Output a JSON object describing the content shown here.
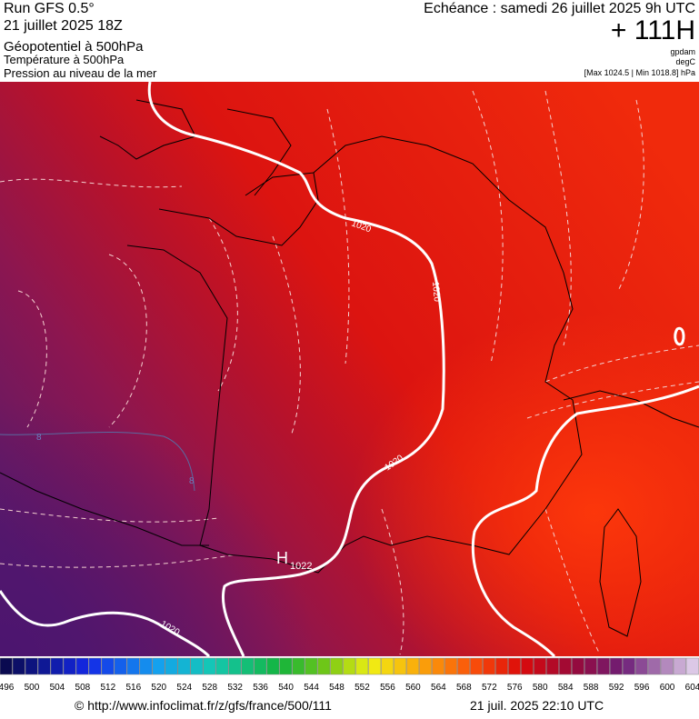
{
  "header": {
    "run": "Run GFS 0.5°",
    "date": "21 juillet 2025 18Z",
    "fields": [
      "Géopotentiel à 500hPa",
      "Température à 500hPa",
      "Pression au niveau de la mer"
    ],
    "forecast": "Echéance : samedi 26 juillet 2025 9h UTC",
    "lead": "+ 111H",
    "units": [
      "gpdam",
      "degC",
      "[Max 1024.5 | Min 1018.8] hPa"
    ]
  },
  "map": {
    "isobar_labels": [
      "1020",
      "1020",
      "1020",
      "1020"
    ],
    "high": {
      "symbol": "H",
      "value": "1022"
    },
    "temp_labels": [
      "8",
      "8"
    ]
  },
  "scale": {
    "labels": [
      496,
      500,
      504,
      508,
      512,
      516,
      520,
      524,
      528,
      532,
      536,
      540,
      544,
      548,
      552,
      556,
      560,
      564,
      568,
      572,
      576,
      580,
      584,
      588,
      592,
      596,
      600,
      604
    ]
  },
  "footer": {
    "url": "© http://www.infoclimat.fr/z/gfs/france/500/111",
    "timestamp": "21 juil. 2025 22:10 UTC"
  }
}
